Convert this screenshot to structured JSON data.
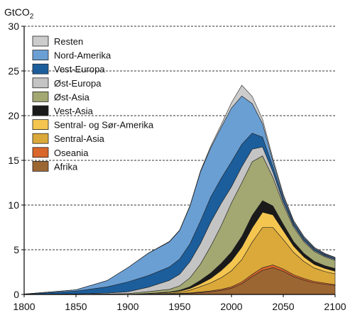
{
  "chart_data": {
    "type": "area",
    "stacked": true,
    "y_unit_label": "GtCO",
    "y_unit_subscript": "2",
    "xlim": [
      1800,
      2100
    ],
    "ylim": [
      0,
      30
    ],
    "x_ticks": [
      1800,
      1850,
      1900,
      1950,
      2000,
      2050,
      2100
    ],
    "y_ticks": [
      0,
      5,
      10,
      15,
      20,
      25,
      30
    ],
    "grid": "dashed horizontal",
    "legend_placement": "top-left",
    "x": [
      1800,
      1850,
      1880,
      1900,
      1920,
      1940,
      1950,
      1960,
      1970,
      1980,
      1990,
      2000,
      2010,
      2020,
      2030,
      2040,
      2050,
      2060,
      2070,
      2080,
      2090,
      2100
    ],
    "series": [
      {
        "name": "Afrika",
        "color": "#9c6633",
        "values": [
          0,
          0,
          0,
          0,
          0.02,
          0.05,
          0.08,
          0.12,
          0.2,
          0.3,
          0.45,
          0.7,
          1.2,
          2.0,
          2.7,
          3.0,
          2.6,
          2.0,
          1.6,
          1.3,
          1.15,
          1.0
        ]
      },
      {
        "name": "Oseania",
        "color": "#d9662a",
        "values": [
          0,
          0,
          0,
          0,
          0.01,
          0.02,
          0.03,
          0.05,
          0.08,
          0.1,
          0.12,
          0.15,
          0.2,
          0.25,
          0.3,
          0.3,
          0.25,
          0.2,
          0.18,
          0.15,
          0.12,
          0.1
        ]
      },
      {
        "name": "Sentral-Asia",
        "color": "#dba93a",
        "values": [
          0,
          0,
          0,
          0,
          0.02,
          0.05,
          0.1,
          0.3,
          0.6,
          0.9,
          1.3,
          1.8,
          2.5,
          3.6,
          4.5,
          4.2,
          3.3,
          2.5,
          1.9,
          1.5,
          1.3,
          1.2
        ]
      },
      {
        "name": "Sentral- og Sør-Amerika",
        "color": "#f5c64f",
        "values": [
          0,
          0,
          0,
          0,
          0.05,
          0.1,
          0.15,
          0.2,
          0.3,
          0.5,
          0.8,
          1.1,
          1.4,
          1.6,
          1.7,
          1.4,
          1.0,
          0.7,
          0.5,
          0.4,
          0.35,
          0.3
        ]
      },
      {
        "name": "Vest-Asia",
        "color": "#1a1a1a",
        "values": [
          0,
          0,
          0,
          0,
          0.02,
          0.05,
          0.1,
          0.2,
          0.4,
          0.6,
          0.8,
          1.0,
          1.2,
          1.4,
          1.3,
          1.0,
          0.7,
          0.5,
          0.4,
          0.35,
          0.3,
          0.3
        ]
      },
      {
        "name": "Øst-Asia",
        "color": "#a3a772",
        "values": [
          0,
          0.02,
          0.05,
          0.1,
          0.2,
          0.3,
          0.5,
          1.0,
          1.8,
          3.0,
          4.2,
          5.5,
          6.0,
          6.0,
          5.0,
          3.2,
          2.2,
          1.6,
          1.3,
          1.1,
          1.0,
          0.9
        ]
      },
      {
        "name": "Øst-Europa",
        "color": "#c4c4c4",
        "values": [
          0,
          0.05,
          0.1,
          0.2,
          0.5,
          1.0,
          1.3,
          1.8,
          2.3,
          2.7,
          2.5,
          1.8,
          1.8,
          1.4,
          1.0,
          0.6,
          0.3,
          0.2,
          0.15,
          0.12,
          0.1,
          0.1
        ]
      },
      {
        "name": "Vest-Europa",
        "color": "#1c5e9c",
        "values": [
          0.03,
          0.3,
          0.7,
          1.1,
          1.3,
          1.5,
          1.7,
          2.0,
          2.5,
          2.8,
          2.8,
          2.8,
          2.5,
          1.8,
          1.1,
          0.6,
          0.35,
          0.25,
          0.2,
          0.15,
          0.12,
          0.1
        ]
      },
      {
        "name": "Nord-Amerika",
        "color": "#6a9fd4",
        "values": [
          0.02,
          0.15,
          0.7,
          1.6,
          2.5,
          2.8,
          3.2,
          4.2,
          5.5,
          5.5,
          5.7,
          6.0,
          5.4,
          3.3,
          1.5,
          0.6,
          0.3,
          0.2,
          0.15,
          0.12,
          0.1,
          0.1
        ]
      },
      {
        "name": "Resten",
        "color": "#cccccc",
        "values": [
          0,
          0,
          0,
          0,
          0.02,
          0.05,
          0.05,
          0.08,
          0.1,
          0.2,
          0.3,
          0.6,
          1.2,
          0.8,
          0.5,
          0.3,
          0.2,
          0.12,
          0.1,
          0.08,
          0.06,
          0.05
        ]
      }
    ]
  }
}
